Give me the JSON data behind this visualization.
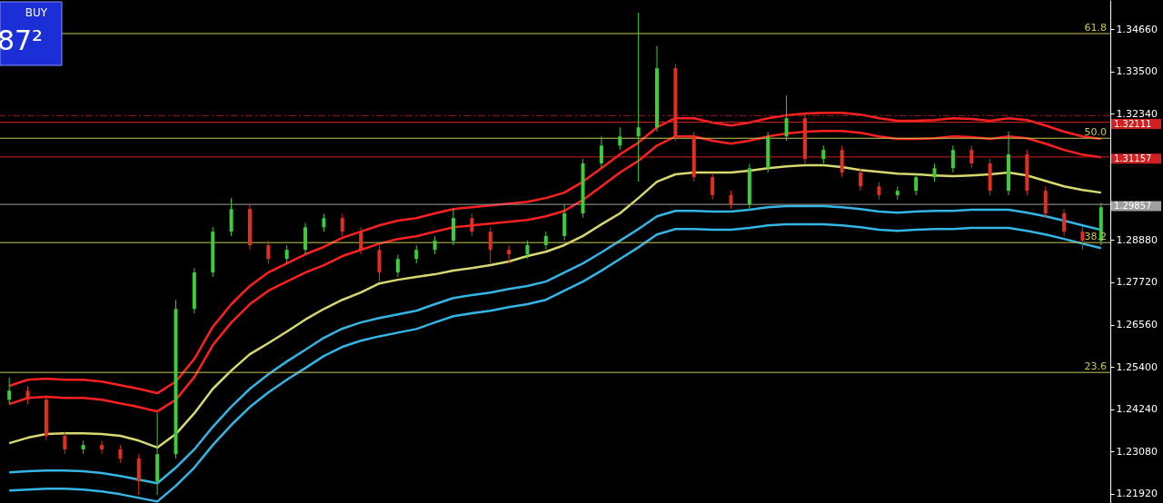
{
  "chart_data": {
    "type": "candlestick",
    "annotations": [
      "BUY",
      "87²",
      {
        "text": "61.8",
        "y": 1.3454
      },
      {
        "text": "50.0",
        "y": 1.3167
      },
      {
        "text": "38.2",
        "y": 1.2881
      },
      {
        "text": "23.6",
        "y": 1.2525
      }
    ],
    "categories": [
      null,
      null,
      null,
      null,
      null,
      null,
      null,
      null,
      null,
      null,
      null,
      null,
      null,
      null,
      null,
      null,
      null,
      null,
      null,
      null,
      null,
      null,
      null,
      null,
      null,
      null,
      null,
      null,
      null,
      null,
      null,
      null,
      null,
      null,
      null,
      null,
      null,
      null,
      null,
      null,
      null,
      null,
      null,
      null,
      null,
      null,
      null,
      null,
      null,
      null,
      null,
      null,
      null,
      null,
      null,
      null,
      null,
      null,
      null,
      null
    ],
    "ohlc": [
      [
        1.245,
        1.2511,
        1.2438,
        1.2475
      ],
      [
        1.2475,
        1.2487,
        1.2438,
        1.245
      ],
      [
        1.245,
        1.2462,
        1.2339,
        1.2351
      ],
      [
        1.2351,
        1.2363,
        1.2302,
        1.2314
      ],
      [
        1.2314,
        1.2338,
        1.2302,
        1.2326
      ],
      [
        1.2326,
        1.2338,
        1.2302,
        1.2314
      ],
      [
        1.2314,
        1.2326,
        1.2277,
        1.2289
      ],
      [
        1.2289,
        1.2301,
        1.2189,
        1.2226
      ],
      [
        1.2226,
        1.2413,
        1.2189,
        1.2301
      ],
      [
        1.2301,
        1.2724,
        1.2289,
        1.2699
      ],
      [
        1.2699,
        1.2811,
        1.2687,
        1.2799
      ],
      [
        1.2799,
        1.2923,
        1.2787,
        1.2911
      ],
      [
        1.2911,
        1.3003,
        1.2899,
        1.2973
      ],
      [
        1.2973,
        1.2985,
        1.2862,
        1.2874
      ],
      [
        1.2874,
        1.2886,
        1.2824,
        1.2836
      ],
      [
        1.2836,
        1.2873,
        1.2824,
        1.2861
      ],
      [
        1.2861,
        1.2935,
        1.2849,
        1.2923
      ],
      [
        1.2923,
        1.296,
        1.2911,
        1.2948
      ],
      [
        1.2948,
        1.296,
        1.2899,
        1.2911
      ],
      [
        1.2911,
        1.2923,
        1.2849,
        1.2861
      ],
      [
        1.2861,
        1.2873,
        1.2774,
        1.2799
      ],
      [
        1.2799,
        1.2848,
        1.2787,
        1.2836
      ],
      [
        1.2836,
        1.2873,
        1.2824,
        1.2861
      ],
      [
        1.2861,
        1.2898,
        1.2849,
        1.2886
      ],
      [
        1.2886,
        1.2973,
        1.2874,
        1.2948
      ],
      [
        1.2948,
        1.296,
        1.2899,
        1.2911
      ],
      [
        1.2911,
        1.2923,
        1.2824,
        1.2861
      ],
      [
        1.2861,
        1.2873,
        1.2824,
        1.2849
      ],
      [
        1.2849,
        1.2886,
        1.2837,
        1.2874
      ],
      [
        1.2874,
        1.2911,
        1.2862,
        1.2899
      ],
      [
        1.2899,
        1.2985,
        1.2887,
        1.2961
      ],
      [
        1.2961,
        1.311,
        1.2949,
        1.3098
      ],
      [
        1.3098,
        1.3172,
        1.3086,
        1.3147
      ],
      [
        1.3147,
        1.3197,
        1.3135,
        1.3172
      ],
      [
        1.3172,
        1.3511,
        1.3048,
        1.3197
      ],
      [
        1.3197,
        1.342,
        1.3185,
        1.3359
      ],
      [
        1.3359,
        1.3371,
        1.316,
        1.3172
      ],
      [
        1.3172,
        1.3184,
        1.3048,
        1.306
      ],
      [
        1.306,
        1.3072,
        1.2999,
        1.3011
      ],
      [
        1.3011,
        1.3023,
        1.2974,
        1.2986
      ],
      [
        1.2986,
        1.3097,
        1.2974,
        1.3085
      ],
      [
        1.3085,
        1.3184,
        1.3073,
        1.3172
      ],
      [
        1.3172,
        1.3284,
        1.316,
        1.3222
      ],
      [
        1.3222,
        1.3234,
        1.3098,
        1.311
      ],
      [
        1.311,
        1.3147,
        1.3098,
        1.3135
      ],
      [
        1.3135,
        1.3147,
        1.3061,
        1.3073
      ],
      [
        1.3073,
        1.3085,
        1.3023,
        1.3035
      ],
      [
        1.3035,
        1.3047,
        1.2999,
        1.3011
      ],
      [
        1.3011,
        1.3035,
        1.2999,
        1.3023
      ],
      [
        1.3023,
        1.3072,
        1.3011,
        1.306
      ],
      [
        1.306,
        1.3097,
        1.3048,
        1.3085
      ],
      [
        1.3085,
        1.3147,
        1.3073,
        1.3135
      ],
      [
        1.3135,
        1.3147,
        1.3086,
        1.3098
      ],
      [
        1.3098,
        1.311,
        1.3011,
        1.3023
      ],
      [
        1.3023,
        1.3185,
        1.3011,
        1.3123
      ],
      [
        1.3123,
        1.3135,
        1.3011,
        1.3023
      ],
      [
        1.3023,
        1.3035,
        1.2949,
        1.2961
      ],
      [
        1.2961,
        1.2973,
        1.2899,
        1.2911
      ],
      [
        1.2911,
        1.2923,
        1.2861,
        1.2886
      ],
      [
        1.2886,
        1.299,
        1.2874,
        1.2978
      ]
    ],
    "series": [
      {
        "type": "line",
        "color": "#ff2020",
        "values": [
          1.2488,
          1.2505,
          1.2508,
          1.2505,
          1.2505,
          1.25,
          1.249,
          1.248,
          1.2468,
          1.25,
          1.2562,
          1.265,
          1.2712,
          1.2762,
          1.2799,
          1.2824,
          1.2849,
          1.2869,
          1.2894,
          1.2911,
          1.2928,
          1.2941,
          1.2948,
          1.2961,
          1.2973,
          1.2978,
          1.2983,
          1.2988,
          1.2993,
          1.3003,
          1.3018,
          1.3048,
          1.3085,
          1.3123,
          1.3155,
          1.3197,
          1.3222,
          1.3222,
          1.321,
          1.3202,
          1.321,
          1.3222,
          1.323,
          1.3235,
          1.3237,
          1.3237,
          1.3232,
          1.3222,
          1.3215,
          1.3215,
          1.3217,
          1.3222,
          1.322,
          1.3215,
          1.3222,
          1.3217,
          1.3202,
          1.3185,
          1.3172,
          1.3165
        ]
      },
      {
        "type": "line",
        "color": "#ff2020",
        "values": [
          1.2438,
          1.2455,
          1.2458,
          1.2455,
          1.2455,
          1.245,
          1.244,
          1.243,
          1.2418,
          1.245,
          1.2512,
          1.26,
          1.2662,
          1.2712,
          1.2749,
          1.2774,
          1.2799,
          1.2819,
          1.2844,
          1.2861,
          1.2878,
          1.2891,
          1.2898,
          1.2911,
          1.2923,
          1.2928,
          1.2933,
          1.2938,
          1.2943,
          1.2953,
          1.2968,
          1.2998,
          1.3035,
          1.3073,
          1.3105,
          1.3147,
          1.3172,
          1.3172,
          1.316,
          1.3152,
          1.316,
          1.3172,
          1.318,
          1.3185,
          1.3187,
          1.3187,
          1.3182,
          1.3172,
          1.3165,
          1.3165,
          1.3167,
          1.3172,
          1.317,
          1.3165,
          1.3172,
          1.3167,
          1.3152,
          1.3135,
          1.3122,
          1.3115
        ]
      },
      {
        "type": "line",
        "color": "#33b5e5",
        "values": [
          1.2251,
          1.2254,
          1.2256,
          1.2256,
          1.2254,
          1.2249,
          1.2241,
          1.2231,
          1.2221,
          1.2264,
          1.2314,
          1.2376,
          1.2431,
          1.248,
          1.252,
          1.2555,
          1.2587,
          1.262,
          1.2645,
          1.2662,
          1.2674,
          1.2684,
          1.2694,
          1.2712,
          1.2729,
          1.2737,
          1.2744,
          1.2754,
          1.2762,
          1.2774,
          1.2799,
          1.2824,
          1.2854,
          1.2886,
          1.2918,
          1.2953,
          1.2968,
          1.2968,
          1.2966,
          1.2966,
          1.2971,
          1.2978,
          1.2981,
          1.2981,
          1.2981,
          1.2978,
          1.2973,
          1.2966,
          1.2963,
          1.2966,
          1.2968,
          1.2968,
          1.2971,
          1.2971,
          1.2971,
          1.2963,
          1.2953,
          1.2941,
          1.2928,
          1.2916
        ]
      },
      {
        "type": "line",
        "color": "#33b5e5",
        "values": [
          1.2201,
          1.2204,
          1.2206,
          1.2206,
          1.2204,
          1.2199,
          1.2191,
          1.2181,
          1.2171,
          1.2214,
          1.2264,
          1.2326,
          1.2381,
          1.243,
          1.247,
          1.2505,
          1.2537,
          1.257,
          1.2595,
          1.2612,
          1.2624,
          1.2634,
          1.2644,
          1.2662,
          1.2679,
          1.2687,
          1.2694,
          1.2704,
          1.2712,
          1.2724,
          1.2749,
          1.2774,
          1.2804,
          1.2836,
          1.2868,
          1.2903,
          1.2918,
          1.2918,
          1.2916,
          1.2916,
          1.2921,
          1.2928,
          1.2931,
          1.2931,
          1.2931,
          1.2928,
          1.2923,
          1.2916,
          1.2913,
          1.2916,
          1.2918,
          1.2918,
          1.2921,
          1.2921,
          1.2921,
          1.2913,
          1.2903,
          1.2891,
          1.2878,
          1.2866
        ]
      },
      {
        "type": "line",
        "color": "#d8d870",
        "values": [
          1.2331,
          1.2346,
          1.2356,
          1.2358,
          1.2358,
          1.2356,
          1.2351,
          1.2338,
          1.2319,
          1.2356,
          1.2413,
          1.248,
          1.253,
          1.2575,
          1.2605,
          1.2637,
          1.267,
          1.2699,
          1.2724,
          1.2744,
          1.2769,
          1.2779,
          1.2787,
          1.2794,
          1.2804,
          1.2811,
          1.2819,
          1.2829,
          1.2844,
          1.2856,
          1.2874,
          1.2899,
          1.2931,
          1.2961,
          1.3003,
          1.3048,
          1.3068,
          1.3073,
          1.3073,
          1.3073,
          1.3078,
          1.3085,
          1.309,
          1.3093,
          1.3093,
          1.3088,
          1.308,
          1.3075,
          1.307,
          1.3068,
          1.3065,
          1.3063,
          1.3065,
          1.3068,
          1.3073,
          1.3065,
          1.305,
          1.3035,
          1.3025,
          1.3018
        ]
      }
    ],
    "ylim": [
      1.2167,
      1.3546
    ],
    "yticks": [
      {
        "value": 1.2192,
        "label": "1.21920"
      },
      {
        "value": 1.2308,
        "label": "1.23080"
      },
      {
        "value": 1.2424,
        "label": "1.24240"
      },
      {
        "value": 1.254,
        "label": "1.25400"
      },
      {
        "value": 1.2656,
        "label": "1.26560"
      },
      {
        "value": 1.2772,
        "label": "1.27720"
      },
      {
        "value": 1.2888,
        "label": "1.28880"
      },
      {
        "value": 1.3234,
        "label": "1.32340"
      },
      {
        "value": 1.335,
        "label": "1.33500"
      },
      {
        "value": 1.3466,
        "label": "1.34660"
      }
    ],
    "ref_lines": [
      {
        "axis": "y",
        "value": 1.3454,
        "color": "#c8c850"
      },
      {
        "axis": "y",
        "value": 1.3229,
        "color": "#9a1a2a",
        "line_style": "dashed"
      },
      {
        "axis": "y",
        "value": 1.32111,
        "label": "1.32111",
        "color": "#d02020"
      },
      {
        "axis": "y",
        "value": 1.3167,
        "color": "#c8c850"
      },
      {
        "axis": "y",
        "value": 1.31157,
        "label": "1.31157",
        "color": "#d02020"
      },
      {
        "axis": "y",
        "value": 1.29857,
        "label": "1.29857",
        "color": "#a0a0a0"
      },
      {
        "axis": "y",
        "value": 1.2881,
        "color": "#c8c850"
      },
      {
        "axis": "y",
        "value": 1.2525,
        "color": "#c8c850"
      }
    ],
    "grid": false,
    "tick_labels": "y"
  }
}
